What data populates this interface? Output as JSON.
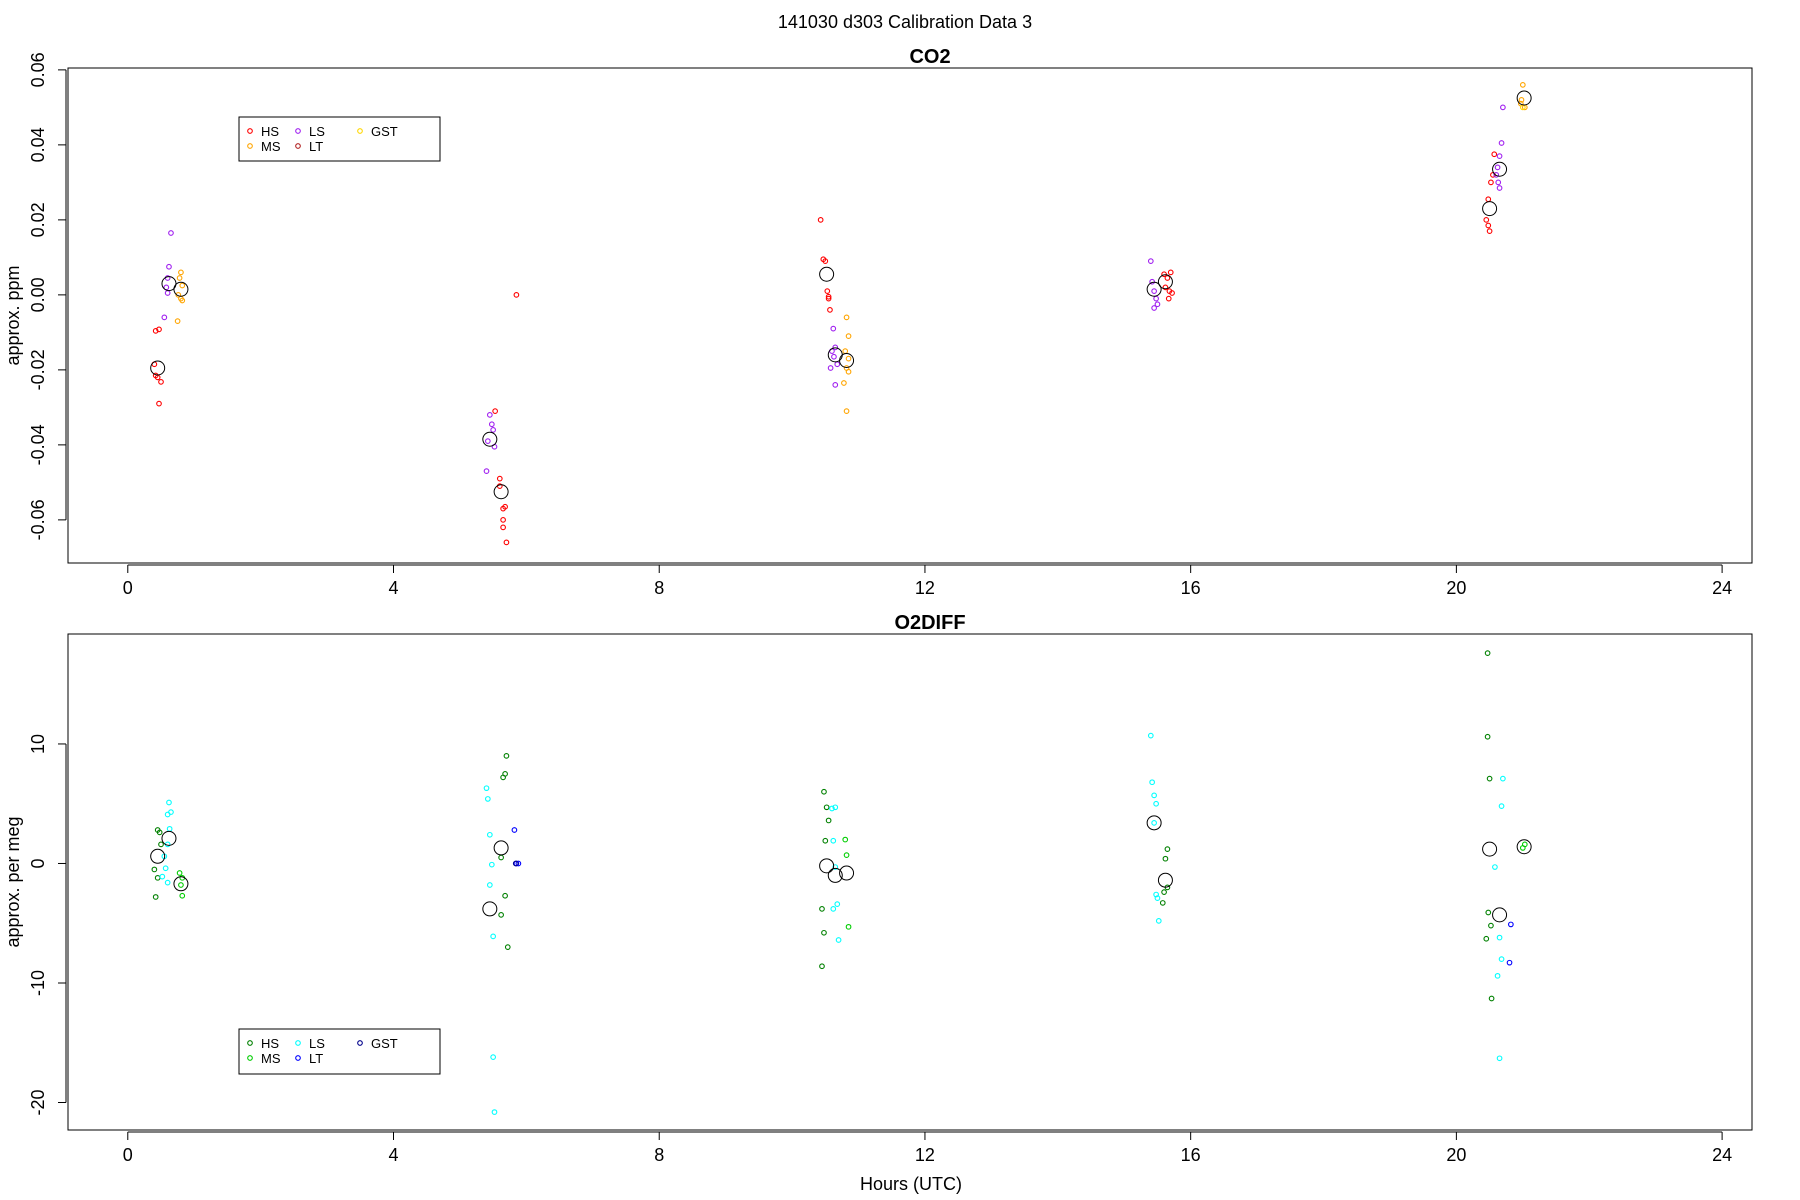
{
  "title": "141030   d303   Calibration Data 3",
  "chart_data": [
    {
      "type": "scatter",
      "title": "CO2",
      "xlabel": "",
      "ylabel": "approx. ppm",
      "xlim": [
        -0.9,
        24.45
      ],
      "ylim": [
        -0.0715,
        0.0605
      ],
      "xticks": [
        0,
        4,
        8,
        12,
        16,
        20,
        24
      ],
      "yticks": [
        -0.06,
        -0.04,
        -0.02,
        0.0,
        0.02,
        0.04,
        0.06
      ],
      "ytick_labels": [
        "-0.06",
        "-0.04",
        "-0.02",
        "0.00",
        "0.02",
        "0.04",
        "0.06"
      ],
      "legend": {
        "placement": "top-left",
        "entries": [
          {
            "label": "HS",
            "color": "#FF0000"
          },
          {
            "label": "MS",
            "color": "#FFA500"
          },
          {
            "label": "LS",
            "color": "#A020F0"
          },
          {
            "label": "LT",
            "color": "#B22222"
          },
          {
            "label": "GST",
            "color": "#FFD700"
          }
        ]
      },
      "series": [
        {
          "label": "HS",
          "color": "#FF0000",
          "points": [
            [
              0.42,
              -0.0096
            ],
            [
              0.47,
              -0.0092
            ],
            [
              0.4,
              -0.0185
            ],
            [
              0.45,
              -0.022
            ],
            [
              0.5,
              -0.0232
            ],
            [
              0.47,
              -0.029
            ],
            [
              0.42,
              -0.0215
            ],
            [
              5.53,
              -0.031
            ],
            [
              5.6,
              -0.049
            ],
            [
              5.6,
              -0.051
            ],
            [
              5.68,
              -0.0565
            ],
            [
              5.65,
              -0.057
            ],
            [
              5.65,
              -0.06
            ],
            [
              5.65,
              -0.062
            ],
            [
              5.7,
              -0.066
            ],
            [
              5.85,
              0.0
            ],
            [
              10.43,
              0.02
            ],
            [
              10.47,
              0.0095
            ],
            [
              10.5,
              0.009
            ],
            [
              10.53,
              0.001
            ],
            [
              10.55,
              -0.0005
            ],
            [
              10.55,
              -0.001
            ],
            [
              10.57,
              -0.004
            ],
            [
              15.6,
              0.0055
            ],
            [
              15.65,
              0.0045
            ],
            [
              15.7,
              0.006
            ],
            [
              15.62,
              0.002
            ],
            [
              15.68,
              0.001
            ],
            [
              15.72,
              0.0005
            ],
            [
              15.67,
              -0.001
            ],
            [
              20.48,
              0.0255
            ],
            [
              20.45,
              0.02
            ],
            [
              20.48,
              0.0185
            ],
            [
              20.5,
              0.017
            ],
            [
              20.52,
              0.03
            ],
            [
              20.55,
              0.032
            ],
            [
              20.57,
              0.0375
            ]
          ]
        },
        {
          "label": "MS",
          "color": "#FFA500",
          "points": [
            [
              0.8,
              0.006
            ],
            [
              0.78,
              0.0045
            ],
            [
              0.82,
              0.0025
            ],
            [
              0.76,
              0.0
            ],
            [
              0.8,
              -0.001
            ],
            [
              0.82,
              -0.0015
            ],
            [
              0.75,
              -0.007
            ],
            [
              10.82,
              -0.006
            ],
            [
              10.85,
              -0.011
            ],
            [
              10.8,
              -0.015
            ],
            [
              10.85,
              -0.017
            ],
            [
              10.82,
              -0.0195
            ],
            [
              10.85,
              -0.0205
            ],
            [
              10.78,
              -0.0235
            ],
            [
              10.82,
              -0.031
            ],
            [
              21.0,
              0.056
            ],
            [
              20.98,
              0.052
            ],
            [
              21.03,
              0.05
            ],
            [
              20.97,
              0.051
            ]
          ]
        },
        {
          "label": "LS",
          "color": "#A020F0",
          "points": [
            [
              0.65,
              0.0165
            ],
            [
              0.62,
              0.0075
            ],
            [
              0.6,
              0.0045
            ],
            [
              0.58,
              0.002
            ],
            [
              0.6,
              0.0005
            ],
            [
              0.55,
              -0.006
            ],
            [
              5.45,
              -0.032
            ],
            [
              5.48,
              -0.0345
            ],
            [
              5.5,
              -0.036
            ],
            [
              5.42,
              -0.039
            ],
            [
              5.52,
              -0.0405
            ],
            [
              5.4,
              -0.047
            ],
            [
              10.62,
              -0.009
            ],
            [
              10.65,
              -0.014
            ],
            [
              10.6,
              -0.015
            ],
            [
              10.63,
              -0.0165
            ],
            [
              10.68,
              -0.0185
            ],
            [
              10.58,
              -0.0195
            ],
            [
              10.65,
              -0.024
            ],
            [
              15.4,
              0.009
            ],
            [
              15.42,
              0.0035
            ],
            [
              15.45,
              0.001
            ],
            [
              15.48,
              -0.001
            ],
            [
              15.5,
              -0.0025
            ],
            [
              15.45,
              -0.0035
            ],
            [
              20.7,
              0.05
            ],
            [
              20.68,
              0.0405
            ],
            [
              20.65,
              0.037
            ],
            [
              20.62,
              0.034
            ],
            [
              20.6,
              0.032
            ],
            [
              20.63,
              0.03
            ],
            [
              20.65,
              0.0285
            ]
          ]
        },
        {
          "label": "LT",
          "color": "#B22222",
          "points": []
        },
        {
          "label": "GST",
          "color": "#FFD700",
          "points": [
            [
              21.0,
              0.05
            ]
          ]
        }
      ],
      "means": [
        [
          0.45,
          -0.0195
        ],
        [
          0.62,
          0.003
        ],
        [
          0.8,
          0.0015
        ],
        [
          5.45,
          -0.0385
        ],
        [
          5.62,
          -0.0525
        ],
        [
          10.52,
          0.0055
        ],
        [
          10.65,
          -0.016
        ],
        [
          10.82,
          -0.0175
        ],
        [
          15.45,
          0.0015
        ],
        [
          15.62,
          0.0035
        ],
        [
          20.5,
          0.023
        ],
        [
          20.65,
          0.0335
        ],
        [
          21.02,
          0.0525
        ]
      ]
    },
    {
      "type": "scatter",
      "title": "O2DIFF",
      "xlabel": "Hours (UTC)",
      "ylabel": "approx. per meg",
      "xlim": [
        -0.9,
        24.45
      ],
      "ylim": [
        -22.3,
        19.2
      ],
      "xticks": [
        0,
        4,
        8,
        12,
        16,
        20,
        24
      ],
      "yticks": [
        -20,
        -10,
        0,
        10
      ],
      "ytick_labels": [
        "-20",
        "-10",
        "0",
        "10"
      ],
      "legend": {
        "placement": "bottom-left",
        "entries": [
          {
            "label": "HS",
            "color": "#008000"
          },
          {
            "label": "MS",
            "color": "#00CD00"
          },
          {
            "label": "LS",
            "color": "#00FFFF"
          },
          {
            "label": "LT",
            "color": "#0000FF"
          },
          {
            "label": "GST",
            "color": "#00008B"
          }
        ]
      },
      "series": [
        {
          "label": "HS",
          "color": "#008000",
          "points": [
            [
              0.45,
              2.8
            ],
            [
              0.48,
              2.6
            ],
            [
              0.5,
              1.6
            ],
            [
              0.4,
              -0.5
            ],
            [
              0.45,
              -1.2
            ],
            [
              0.42,
              -2.8
            ],
            [
              5.7,
              9.0
            ],
            [
              5.68,
              7.5
            ],
            [
              5.65,
              7.2
            ],
            [
              5.62,
              0.5
            ],
            [
              5.68,
              -2.7
            ],
            [
              5.62,
              -4.3
            ],
            [
              5.72,
              -7.0
            ],
            [
              10.48,
              6.0
            ],
            [
              10.52,
              4.7
            ],
            [
              10.55,
              3.6
            ],
            [
              10.5,
              1.9
            ],
            [
              10.45,
              -3.8
            ],
            [
              10.48,
              -5.8
            ],
            [
              10.45,
              -8.6
            ],
            [
              15.65,
              1.2
            ],
            [
              15.62,
              0.4
            ],
            [
              15.6,
              -2.4
            ],
            [
              15.58,
              -3.3
            ],
            [
              15.65,
              -2.0
            ],
            [
              20.47,
              17.6
            ],
            [
              20.47,
              10.6
            ],
            [
              20.5,
              7.1
            ],
            [
              20.48,
              -4.1
            ],
            [
              20.52,
              -5.2
            ],
            [
              20.45,
              -6.3
            ],
            [
              20.53,
              -11.3
            ]
          ]
        },
        {
          "label": "MS",
          "color": "#00CD00",
          "points": [
            [
              0.78,
              -0.8
            ],
            [
              0.82,
              -1.2
            ],
            [
              0.8,
              -1.8
            ],
            [
              0.82,
              -2.7
            ],
            [
              10.8,
              2.0
            ],
            [
              10.82,
              0.7
            ],
            [
              10.85,
              -5.3
            ],
            [
              21.0,
              1.3
            ],
            [
              21.03,
              1.6
            ]
          ]
        },
        {
          "label": "LS",
          "color": "#00FFFF",
          "points": [
            [
              0.62,
              5.1
            ],
            [
              0.65,
              4.3
            ],
            [
              0.6,
              4.1
            ],
            [
              0.63,
              2.9
            ],
            [
              0.6,
              1.6
            ],
            [
              0.55,
              0.6
            ],
            [
              0.57,
              -0.4
            ],
            [
              0.52,
              -1.1
            ],
            [
              0.6,
              -1.6
            ],
            [
              5.4,
              6.3
            ],
            [
              5.42,
              5.4
            ],
            [
              5.45,
              2.4
            ],
            [
              5.48,
              -0.1
            ],
            [
              5.45,
              -1.8
            ],
            [
              5.5,
              -6.1
            ],
            [
              5.5,
              -16.2
            ],
            [
              5.52,
              -20.8
            ],
            [
              10.6,
              4.6
            ],
            [
              10.65,
              4.7
            ],
            [
              10.62,
              1.9
            ],
            [
              10.65,
              -0.3
            ],
            [
              10.68,
              -3.4
            ],
            [
              10.62,
              -3.8
            ],
            [
              10.7,
              -6.4
            ],
            [
              15.4,
              10.7
            ],
            [
              15.42,
              6.8
            ],
            [
              15.45,
              5.7
            ],
            [
              15.48,
              5.0
            ],
            [
              15.45,
              3.4
            ],
            [
              15.48,
              -2.6
            ],
            [
              15.5,
              -2.9
            ],
            [
              15.52,
              -4.8
            ],
            [
              20.7,
              7.1
            ],
            [
              20.68,
              4.8
            ],
            [
              20.58,
              -0.3
            ],
            [
              20.65,
              -6.2
            ],
            [
              20.68,
              -8.0
            ],
            [
              20.62,
              -9.4
            ],
            [
              20.65,
              -16.3
            ]
          ]
        },
        {
          "label": "LT",
          "color": "#0000FF",
          "points": [
            [
              5.82,
              2.8
            ],
            [
              5.85,
              0.0
            ],
            [
              5.88,
              0.0
            ],
            [
              20.82,
              -5.1
            ],
            [
              20.8,
              -8.3
            ]
          ]
        },
        {
          "label": "GST",
          "color": "#00008B",
          "points": [
            [
              5.84,
              0.0
            ]
          ]
        }
      ],
      "means": [
        [
          0.45,
          0.6
        ],
        [
          0.62,
          2.1
        ],
        [
          0.8,
          -1.7
        ],
        [
          5.45,
          -3.8
        ],
        [
          5.62,
          1.3
        ],
        [
          10.52,
          -0.2
        ],
        [
          10.65,
          -1.0
        ],
        [
          10.82,
          -0.8
        ],
        [
          15.45,
          3.4
        ],
        [
          15.62,
          -1.4
        ],
        [
          20.5,
          1.2
        ],
        [
          20.65,
          -4.3
        ],
        [
          21.02,
          1.4
        ]
      ]
    }
  ]
}
